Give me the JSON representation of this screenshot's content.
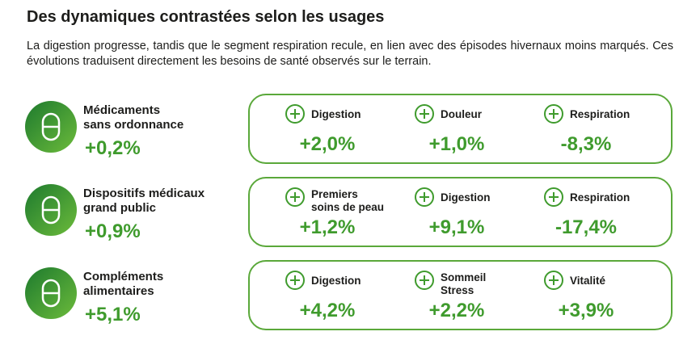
{
  "title": "Des dynamiques contrastées selon les usages",
  "intro": "La digestion progresse, tandis que le segment respiration recule, en lien avec des épisodes hivernaux moins marqués. Ces évolutions traduisent directement les besoins de santé observés sur le terrain.",
  "groups": [
    {
      "name": [
        "Médicaments",
        "sans ordonnance"
      ],
      "total": "+0,2%",
      "items": [
        {
          "label": [
            "Digestion"
          ],
          "value": "+2,0%"
        },
        {
          "label": [
            "Douleur"
          ],
          "value": "+1,0%"
        },
        {
          "label": [
            "Respiration"
          ],
          "value": "-8,3%"
        }
      ]
    },
    {
      "name": [
        "Dispositifs médicaux",
        "grand public"
      ],
      "total": "+0,9%",
      "items": [
        {
          "label": [
            "Premiers",
            "soins de peau"
          ],
          "value": "+1,2%"
        },
        {
          "label": [
            "Digestion"
          ],
          "value": "+9,1%"
        },
        {
          "label": [
            "Respiration"
          ],
          "value": "-17,4%"
        }
      ]
    },
    {
      "name": [
        "Compléments",
        "alimentaires"
      ],
      "total": "+5,1%",
      "items": [
        {
          "label": [
            "Digestion"
          ],
          "value": "+4,2%"
        },
        {
          "label": [
            "Sommeil",
            "Stress"
          ],
          "value": "+2,2%"
        },
        {
          "label": [
            "Vitalité"
          ],
          "value": "+3,9%"
        }
      ]
    }
  ]
}
